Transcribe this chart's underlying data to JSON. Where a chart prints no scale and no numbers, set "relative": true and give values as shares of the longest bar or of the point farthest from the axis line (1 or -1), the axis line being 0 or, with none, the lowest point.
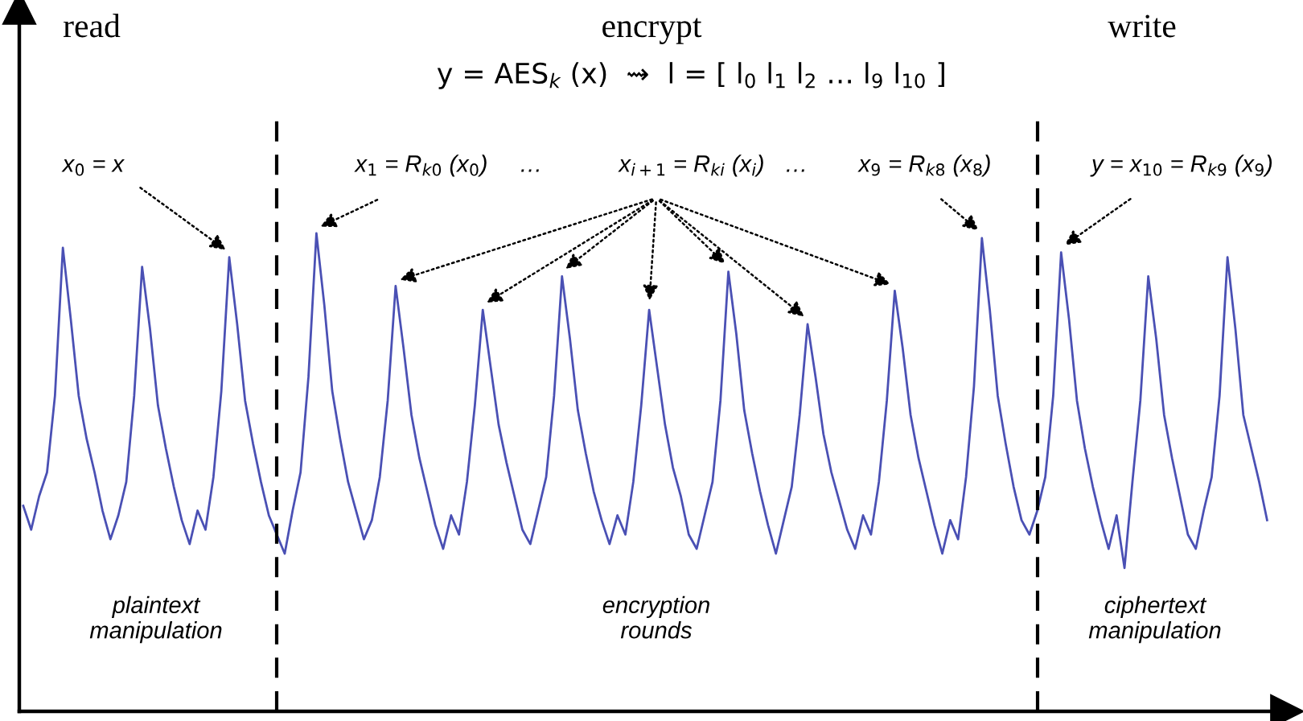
{
  "chart_data": {
    "type": "line",
    "relative": true,
    "legend": false,
    "marker": "none",
    "line_style": "solid",
    "categories": [
      null,
      null,
      null,
      null,
      null,
      null,
      null,
      null,
      null,
      null,
      null,
      null,
      null,
      null,
      null,
      null,
      null,
      null,
      null,
      null,
      null,
      null,
      null,
      null,
      null,
      null,
      null,
      null,
      null,
      null,
      null,
      null,
      null,
      null,
      null,
      null,
      null,
      null,
      null,
      null,
      null,
      null,
      null,
      null,
      null,
      null,
      null,
      null,
      null,
      null,
      null,
      null,
      null,
      null,
      null,
      null,
      null,
      null,
      null,
      null,
      null,
      null,
      null,
      null,
      null,
      null,
      null,
      null,
      null,
      null,
      null,
      null,
      null,
      null,
      null,
      null,
      null,
      null,
      null,
      null,
      null,
      null,
      null,
      null,
      null,
      null,
      null,
      null,
      null,
      null,
      null,
      null,
      null,
      null,
      null,
      null,
      null,
      null,
      null,
      null,
      null,
      null,
      null,
      null,
      null,
      null,
      null,
      null,
      null,
      null,
      null,
      null,
      null,
      null,
      null,
      null,
      null,
      null,
      null,
      null,
      null,
      null,
      null,
      null,
      null,
      null,
      null,
      null,
      null,
      null,
      null,
      null,
      null,
      null,
      null,
      null,
      null,
      null,
      null,
      null,
      null,
      null,
      null,
      null,
      null,
      null,
      null,
      null,
      null,
      null,
      null,
      null,
      null,
      null,
      null,
      null,
      null,
      null
    ],
    "series": [
      {
        "color": "#4a50b4",
        "values": [
          0.43,
          0.38,
          0.45,
          0.5,
          0.66,
          0.97,
          0.82,
          0.66,
          0.57,
          0.5,
          0.42,
          0.36,
          0.41,
          0.48,
          0.66,
          0.93,
          0.8,
          0.64,
          0.55,
          0.47,
          0.4,
          0.35,
          0.42,
          0.38,
          0.49,
          0.67,
          0.95,
          0.81,
          0.65,
          0.56,
          0.48,
          0.41,
          0.37,
          0.33,
          0.42,
          0.5,
          0.7,
          1.0,
          0.85,
          0.67,
          0.57,
          0.48,
          0.42,
          0.36,
          0.4,
          0.49,
          0.65,
          0.89,
          0.76,
          0.62,
          0.53,
          0.46,
          0.39,
          0.34,
          0.41,
          0.37,
          0.48,
          0.64,
          0.84,
          0.72,
          0.6,
          0.52,
          0.45,
          0.38,
          0.35,
          0.42,
          0.49,
          0.66,
          0.91,
          0.78,
          0.63,
          0.54,
          0.46,
          0.4,
          0.35,
          0.41,
          0.37,
          0.48,
          0.64,
          0.84,
          0.72,
          0.6,
          0.51,
          0.45,
          0.37,
          0.34,
          0.41,
          0.48,
          0.65,
          0.92,
          0.79,
          0.63,
          0.54,
          0.46,
          0.39,
          0.33,
          0.4,
          0.47,
          0.62,
          0.81,
          0.7,
          0.58,
          0.5,
          0.44,
          0.38,
          0.34,
          0.41,
          0.37,
          0.48,
          0.65,
          0.88,
          0.76,
          0.62,
          0.53,
          0.46,
          0.39,
          0.33,
          0.4,
          0.36,
          0.49,
          0.68,
          0.99,
          0.84,
          0.66,
          0.56,
          0.47,
          0.4,
          0.37,
          0.42,
          0.49,
          0.66,
          0.96,
          0.82,
          0.65,
          0.55,
          0.47,
          0.4,
          0.34,
          0.41,
          0.3,
          0.48,
          0.65,
          0.91,
          0.78,
          0.62,
          0.53,
          0.45,
          0.37,
          0.34,
          0.42,
          0.49,
          0.66,
          0.95,
          0.8,
          0.62,
          0.55,
          0.48,
          0.4
        ]
      }
    ],
    "annotations": [
      "read",
      "encrypt",
      "write",
      "y = AES$_{k}$ (x)  ⇝  l = [ l$_{0}$ l$_{1}$ l$_{2}$ … l$_{9}$ l$_{10}$ ]",
      "x$_{0}$ = x",
      "x$_{1}$ = R$_{k0}$ (x$_{0}$)",
      "…",
      "x$_{i+1}$ = R$_{ki}$ (x$_{i}$)",
      "…",
      "x$_{9}$ = R$_{k8}$ (x$_{8}$)",
      "y = x$_{10}$ = R$_{k9}$ (x$_{9}$)",
      "plaintext\nmanipulation",
      "encryption\nrounds",
      "ciphertext\nmanipulation"
    ]
  }
}
